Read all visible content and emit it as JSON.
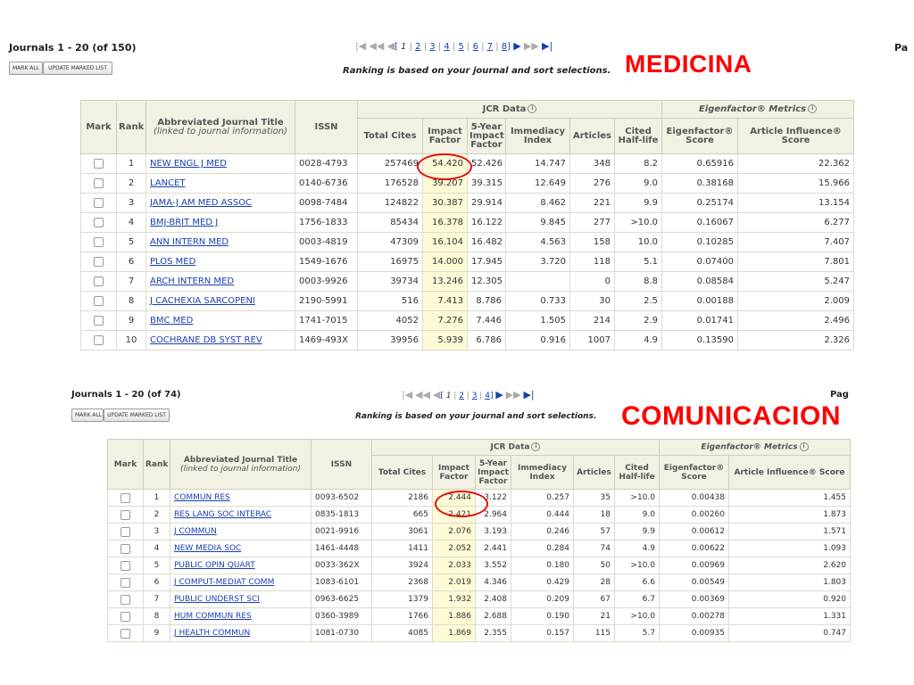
{
  "panels": [
    {
      "id": "medicina",
      "header": "Journals 1 - 20 (of 150)",
      "page_right": "Pa",
      "mark_all": "MARK ALL",
      "update_marked": "UPDATE MARKED LIST",
      "pager": {
        "first": "|◀",
        "prev_block": "◀◀",
        "prev": "◀",
        "open": "[",
        "current": "1",
        "pages": [
          "2",
          "3",
          "4",
          "5",
          "6",
          "7",
          "8"
        ],
        "close": "]",
        "next": "▶",
        "next_block": "▶▶",
        "last": "▶|"
      },
      "ranking_note": "Ranking is based on your journal and sort selections.",
      "big_label": "MEDICINA",
      "columns": {
        "mark": "Mark",
        "rank": "Rank",
        "title": "Abbreviated Journal Title",
        "title_sub": "(linked to journal information)",
        "issn": "ISSN",
        "jcr_group": "JCR Data",
        "eigen_group": "Eigenfactor® Metrics",
        "total_cites": "Total Cites",
        "impact_factor": "Impact Factor",
        "five_year": "5-Year Impact Factor",
        "immediacy": "Immediacy Index",
        "articles": "Articles",
        "cited_half_life": "Cited Half-life",
        "eigenfactor_score": "Eigenfactor® Score",
        "article_influence": "Article Influence® Score"
      },
      "rows": [
        {
          "rank": "1",
          "title": "NEW ENGL J MED",
          "issn": "0028-4793",
          "cites": "257469",
          "if": "54.420",
          "if5": "52.426",
          "imm": "14.747",
          "articles": "348",
          "chl": "8.2",
          "ef": "0.65916",
          "ai": "22.362"
        },
        {
          "rank": "2",
          "title": "LANCET",
          "issn": "0140-6736",
          "cites": "176528",
          "if": "39.207",
          "if5": "39.315",
          "imm": "12.649",
          "articles": "276",
          "chl": "9.0",
          "ef": "0.38168",
          "ai": "15.966"
        },
        {
          "rank": "3",
          "title": "JAMA-J AM MED ASSOC",
          "issn": "0098-7484",
          "cites": "124822",
          "if": "30.387",
          "if5": "29.914",
          "imm": "8.462",
          "articles": "221",
          "chl": "9.9",
          "ef": "0.25174",
          "ai": "13.154"
        },
        {
          "rank": "4",
          "title": "BMJ-BRIT MED J",
          "issn": "1756-1833",
          "cites": "85434",
          "if": "16.378",
          "if5": "16.122",
          "imm": "9.845",
          "articles": "277",
          "chl": ">10.0",
          "ef": "0.16067",
          "ai": "6.277"
        },
        {
          "rank": "5",
          "title": "ANN INTERN MED",
          "issn": "0003-4819",
          "cites": "47309",
          "if": "16.104",
          "if5": "16.482",
          "imm": "4.563",
          "articles": "158",
          "chl": "10.0",
          "ef": "0.10285",
          "ai": "7.407"
        },
        {
          "rank": "6",
          "title": "PLOS MED",
          "issn": "1549-1676",
          "cites": "16975",
          "if": "14.000",
          "if5": "17.945",
          "imm": "3.720",
          "articles": "118",
          "chl": "5.1",
          "ef": "0.07400",
          "ai": "7.801"
        },
        {
          "rank": "7",
          "title": "ARCH INTERN MED",
          "issn": "0003-9926",
          "cites": "39734",
          "if": "13.246",
          "if5": "12.305",
          "imm": "",
          "articles": "0",
          "chl": "8.8",
          "ef": "0.08584",
          "ai": "5.247"
        },
        {
          "rank": "8",
          "title": "J CACHEXIA SARCOPENI",
          "issn": "2190-5991",
          "cites": "516",
          "if": "7.413",
          "if5": "8.786",
          "imm": "0.733",
          "articles": "30",
          "chl": "2.5",
          "ef": "0.00188",
          "ai": "2.009"
        },
        {
          "rank": "9",
          "title": "BMC MED",
          "issn": "1741-7015",
          "cites": "4052",
          "if": "7.276",
          "if5": "7.446",
          "imm": "1.505",
          "articles": "214",
          "chl": "2.9",
          "ef": "0.01741",
          "ai": "2.496"
        },
        {
          "rank": "10",
          "title": "COCHRANE DB SYST REV",
          "issn": "1469-493X",
          "cites": "39956",
          "if": "5.939",
          "if5": "6.786",
          "imm": "0.916",
          "articles": "1007",
          "chl": "4.9",
          "ef": "0.13590",
          "ai": "2.326"
        }
      ]
    },
    {
      "id": "comunicacion",
      "header": "Journals 1 - 20 (of 74)",
      "page_right": "Pag",
      "mark_all": "MARK ALL",
      "update_marked": "UPDATE MARKED LIST",
      "pager": {
        "first": "|◀",
        "prev_block": "◀◀",
        "prev": "◀",
        "open": "[",
        "current": "1",
        "pages": [
          "2",
          "3",
          "4"
        ],
        "close": "]",
        "next": "▶",
        "next_block": "▶▶",
        "last": "▶|"
      },
      "ranking_note": "Ranking is based on your journal and sort selections.",
      "big_label": "COMUNICACION",
      "columns": {
        "mark": "Mark",
        "rank": "Rank",
        "title": "Abbreviated Journal Title",
        "title_sub": "(linked to journal information)",
        "issn": "ISSN",
        "jcr_group": "JCR Data",
        "eigen_group": "Eigenfactor® Metrics",
        "total_cites": "Total Cites",
        "impact_factor": "Impact Factor",
        "five_year": "5-Year Impact Factor",
        "immediacy": "Immediacy Index",
        "articles": "Articles",
        "cited_half_life": "Cited Half-life",
        "eigenfactor_score": "Eigenfactor® Score",
        "article_influence": "Article Influence® Score"
      },
      "rows": [
        {
          "rank": "1",
          "title": "COMMUN RES",
          "issn": "0093-6502",
          "cites": "2186",
          "if": "2.444",
          "if5": "3.122",
          "imm": "0.257",
          "articles": "35",
          "chl": ">10.0",
          "ef": "0.00438",
          "ai": "1.455"
        },
        {
          "rank": "2",
          "title": "RES LANG SOC INTERAC",
          "issn": "0835-1813",
          "cites": "665",
          "if": "2.421",
          "if5": "2.964",
          "imm": "0.444",
          "articles": "18",
          "chl": "9.0",
          "ef": "0.00260",
          "ai": "1.873"
        },
        {
          "rank": "3",
          "title": "J COMMUN",
          "issn": "0021-9916",
          "cites": "3061",
          "if": "2.076",
          "if5": "3.193",
          "imm": "0.246",
          "articles": "57",
          "chl": "9.9",
          "ef": "0.00612",
          "ai": "1.571"
        },
        {
          "rank": "4",
          "title": "NEW MEDIA SOC",
          "issn": "1461-4448",
          "cites": "1411",
          "if": "2.052",
          "if5": "2.441",
          "imm": "0.284",
          "articles": "74",
          "chl": "4.9",
          "ef": "0.00622",
          "ai": "1.093"
        },
        {
          "rank": "5",
          "title": "PUBLIC OPIN QUART",
          "issn": "0033-362X",
          "cites": "3924",
          "if": "2.033",
          "if5": "3.552",
          "imm": "0.180",
          "articles": "50",
          "chl": ">10.0",
          "ef": "0.00969",
          "ai": "2.620"
        },
        {
          "rank": "6",
          "title": "J COMPUT-MEDIAT COMM",
          "issn": "1083-6101",
          "cites": "2368",
          "if": "2.019",
          "if5": "4.346",
          "imm": "0.429",
          "articles": "28",
          "chl": "6.6",
          "ef": "0.00549",
          "ai": "1.803"
        },
        {
          "rank": "7",
          "title": "PUBLIC UNDERST SCI",
          "issn": "0963-6625",
          "cites": "1379",
          "if": "1.932",
          "if5": "2.408",
          "imm": "0.209",
          "articles": "67",
          "chl": "6.7",
          "ef": "0.00369",
          "ai": "0.920"
        },
        {
          "rank": "8",
          "title": "HUM COMMUN RES",
          "issn": "0360-3989",
          "cites": "1766",
          "if": "1.886",
          "if5": "2.688",
          "imm": "0.190",
          "articles": "21",
          "chl": ">10.0",
          "ef": "0.00278",
          "ai": "1.331"
        },
        {
          "rank": "9",
          "title": "J HEALTH COMMUN",
          "issn": "1081-0730",
          "cites": "4085",
          "if": "1.869",
          "if5": "2.355",
          "imm": "0.157",
          "articles": "115",
          "chl": "5.7",
          "ef": "0.00935",
          "ai": "0.747"
        }
      ]
    }
  ],
  "icons": {
    "info": "info-icon",
    "checkbox": "checkbox-icon"
  },
  "colors": {
    "highlight_label": "#ff0000",
    "link": "#1a3fb0",
    "impact_column": "#fdfbd6",
    "header_bg": "#f1f1e4",
    "circle": "#e01010"
  }
}
